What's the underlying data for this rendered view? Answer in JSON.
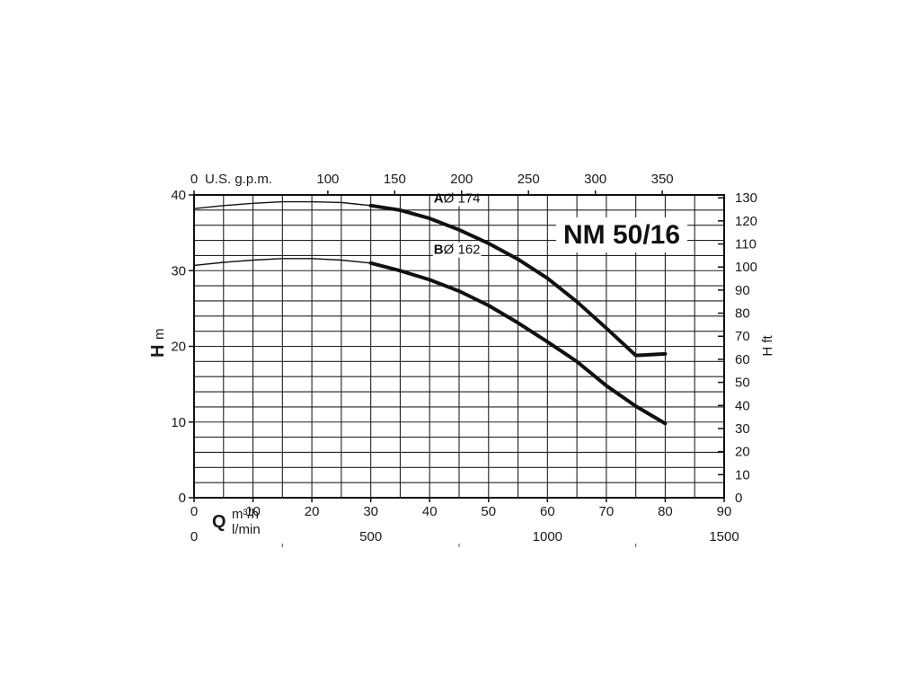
{
  "chart_data": {
    "type": "line",
    "title": "NM 50/16",
    "xlabel_symbol": "Q",
    "x_units_primary": "m³/h",
    "x_units_secondary": "l/min",
    "x_top_label": "U.S. g.p.m.",
    "ylabel_symbol": "H",
    "ylabel_unit": "m",
    "y_right_label": "H ft",
    "xlim": [
      0,
      90
    ],
    "ylim": [
      0,
      40
    ],
    "x_ticks": [
      "0",
      "10",
      "20",
      "30",
      "40",
      "50",
      "60",
      "70",
      "80",
      "90"
    ],
    "y_ticks": [
      "0",
      "10",
      "20",
      "30",
      "40"
    ],
    "x_bottom_ticks": [
      "0",
      "500",
      "1000",
      "1500"
    ],
    "x_bottom_tick_values": [
      0,
      500,
      1000,
      1500
    ],
    "x_top_ticks": [
      "0",
      "100",
      "150",
      "200",
      "250",
      "300",
      "350"
    ],
    "x_top_tick_values": [
      0,
      100,
      150,
      200,
      250,
      300,
      350
    ],
    "y_right_ticks": [
      "0",
      "10",
      "20",
      "30",
      "40",
      "50",
      "60",
      "70",
      "80",
      "90",
      "100",
      "110",
      "120",
      "130"
    ],
    "y_right_tick_values": [
      0,
      10,
      20,
      30,
      40,
      50,
      60,
      70,
      80,
      90,
      100,
      110,
      120,
      130
    ],
    "grid": true,
    "series": [
      {
        "letter": "A",
        "diameter": "Ø 174",
        "thin_until_x": 30,
        "x": [
          0,
          5,
          10,
          15,
          20,
          25,
          30,
          35,
          40,
          45,
          50,
          55,
          60,
          65,
          70,
          75,
          80
        ],
        "values": [
          38.2,
          38.6,
          38.9,
          39.1,
          39.1,
          39.0,
          38.6,
          38.0,
          36.9,
          35.4,
          33.6,
          31.5,
          29.0,
          25.9,
          22.4,
          18.8,
          19.0
        ]
      },
      {
        "letter": "B",
        "diameter": "Ø 162",
        "thin_until_x": 30,
        "x": [
          0,
          5,
          10,
          15,
          20,
          25,
          30,
          35,
          40,
          45,
          50,
          55,
          60,
          65,
          70,
          75,
          80
        ],
        "values": [
          30.7,
          31.1,
          31.4,
          31.6,
          31.6,
          31.4,
          31.0,
          30.0,
          28.8,
          27.3,
          25.4,
          23.1,
          20.6,
          18.0,
          14.8,
          12.1,
          9.8
        ]
      }
    ]
  }
}
